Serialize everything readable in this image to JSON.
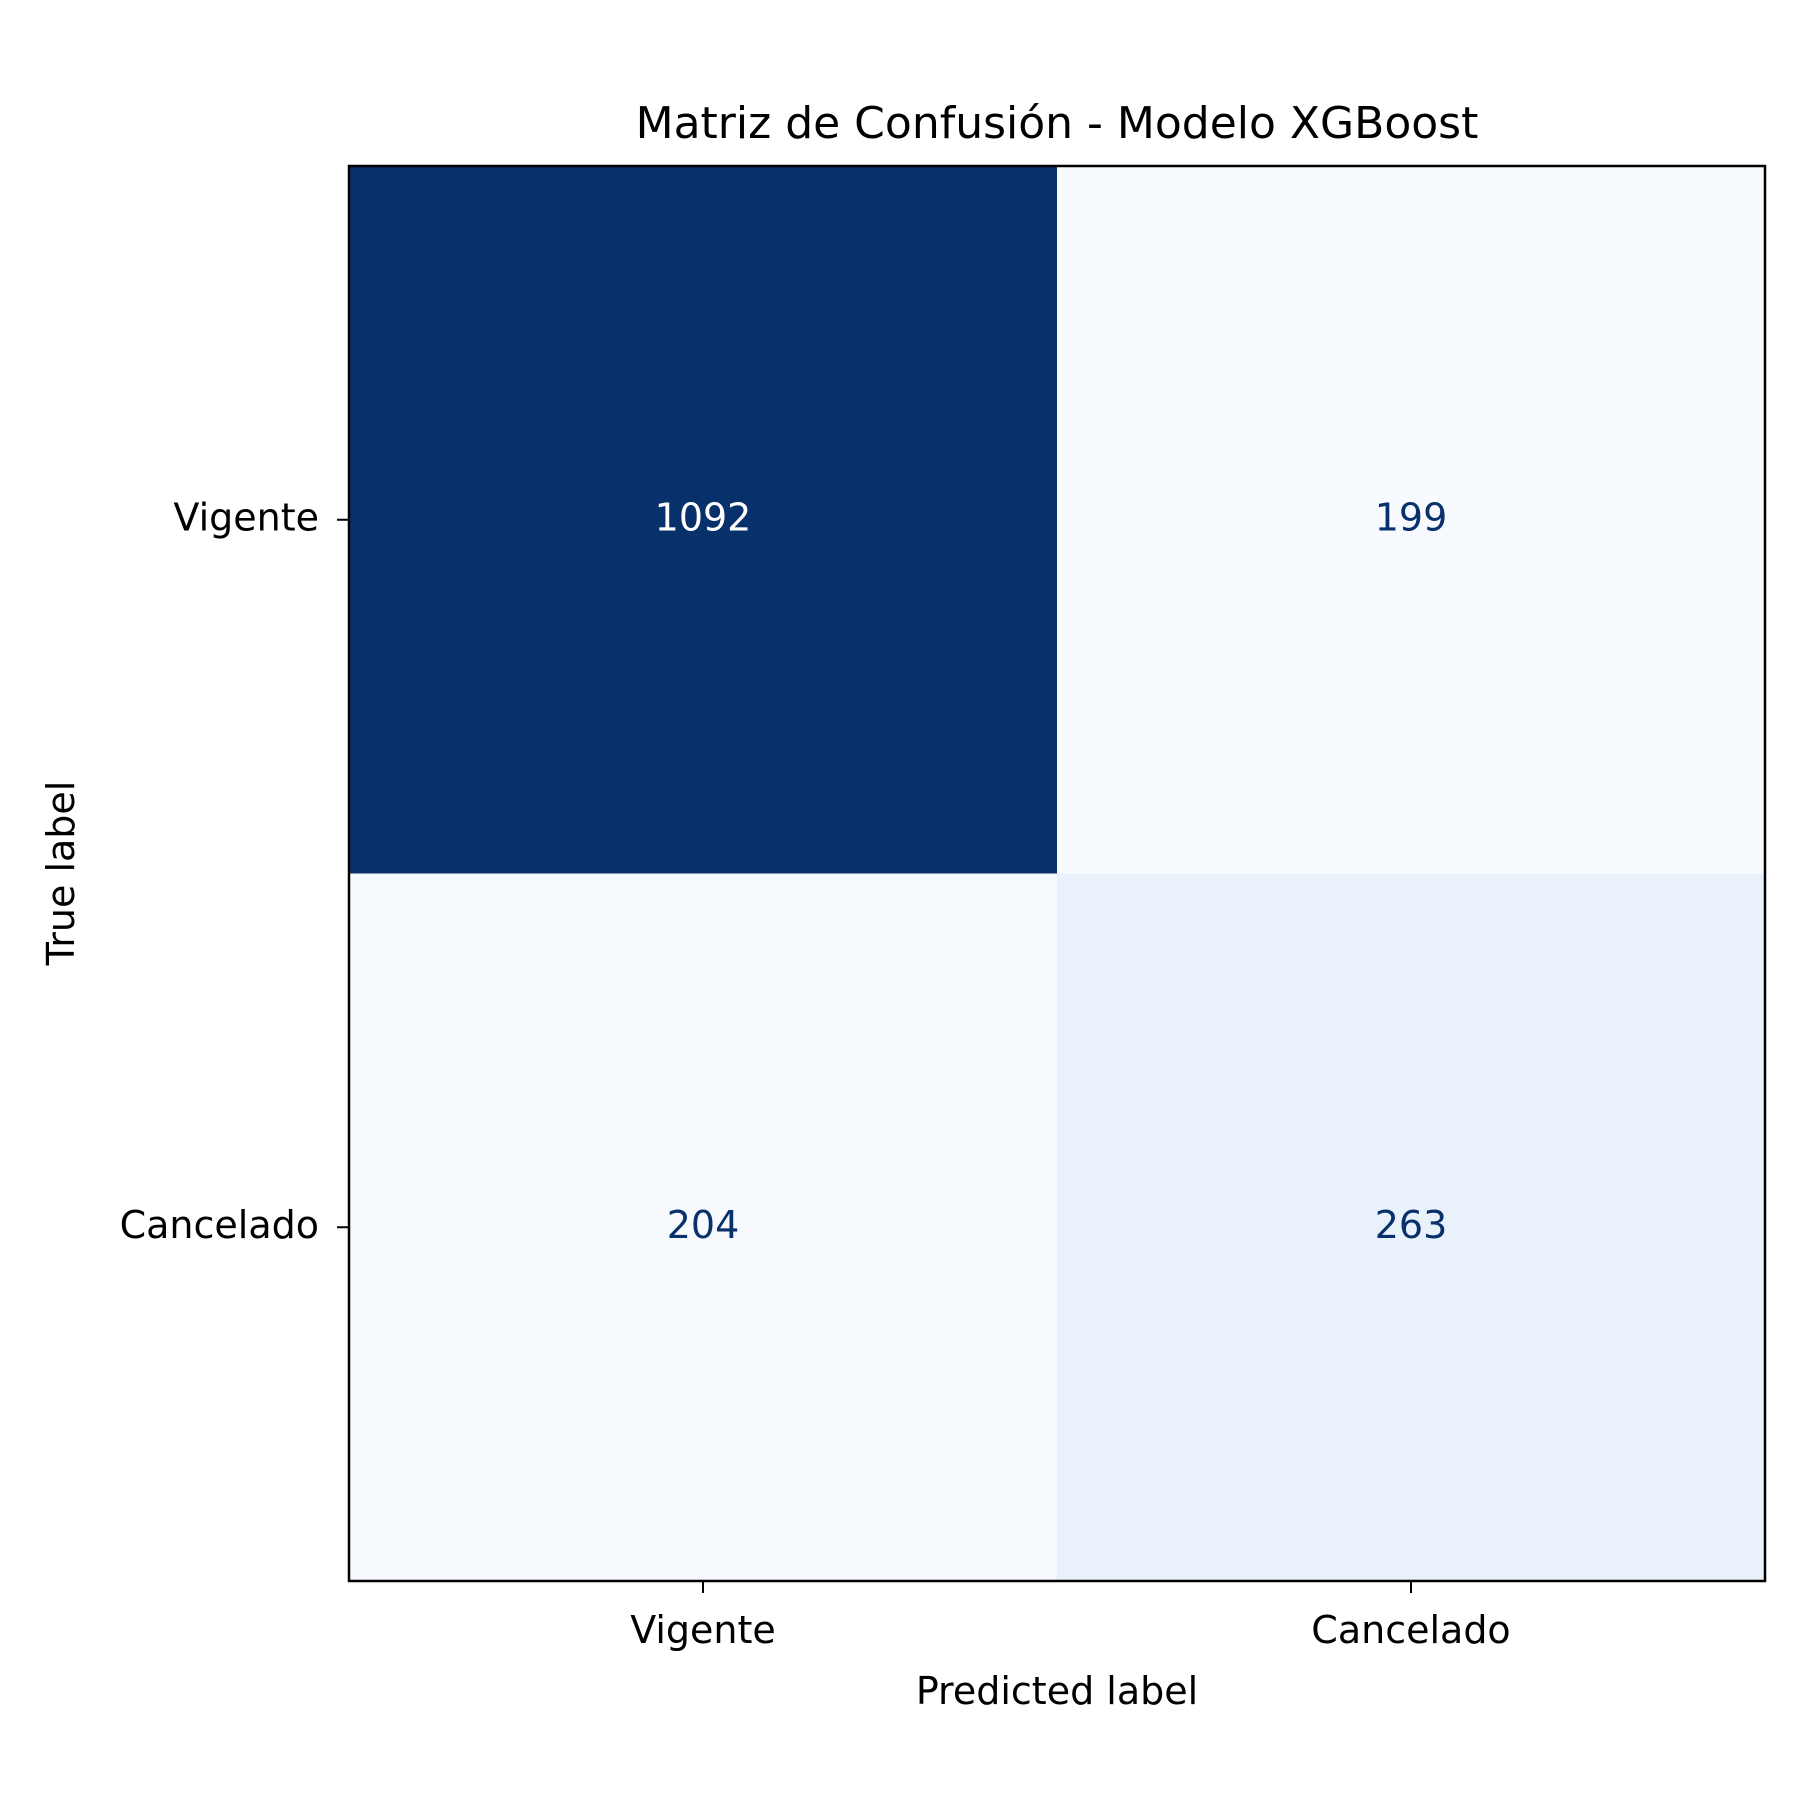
{
  "chart_data": {
    "type": "heatmap",
    "title": "Matriz de Confusión - Modelo XGBoost",
    "xlabel": "Predicted label",
    "ylabel": "True label",
    "x_categories": [
      "Vigente",
      "Cancelado"
    ],
    "y_categories": [
      "Vigente",
      "Cancelado"
    ],
    "matrix": [
      [
        1092,
        199
      ],
      [
        204,
        263
      ]
    ],
    "colormap": "Blues",
    "colors": {
      "max_cell": "#08306b",
      "min_cell": "#f7fbff",
      "dark_text": "#08306b",
      "light_text": "#ffffff"
    }
  }
}
